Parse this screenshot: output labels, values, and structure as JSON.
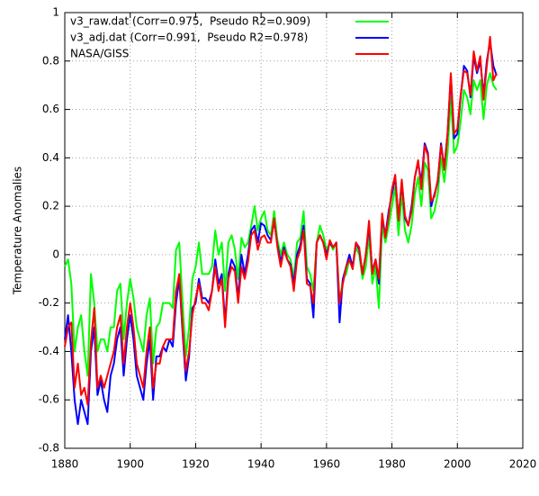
{
  "chart_data": {
    "type": "line",
    "ylabel": "Temperature Anomalies",
    "x": [
      1880,
      1881,
      1882,
      1883,
      1884,
      1885,
      1886,
      1887,
      1888,
      1889,
      1890,
      1891,
      1892,
      1893,
      1894,
      1895,
      1896,
      1897,
      1898,
      1899,
      1900,
      1901,
      1902,
      1903,
      1904,
      1905,
      1906,
      1907,
      1908,
      1909,
      1910,
      1911,
      1912,
      1913,
      1914,
      1915,
      1916,
      1917,
      1918,
      1919,
      1920,
      1921,
      1922,
      1923,
      1924,
      1925,
      1926,
      1927,
      1928,
      1929,
      1930,
      1931,
      1932,
      1933,
      1934,
      1935,
      1936,
      1937,
      1938,
      1939,
      1940,
      1941,
      1942,
      1943,
      1944,
      1945,
      1946,
      1947,
      1948,
      1949,
      1950,
      1951,
      1952,
      1953,
      1954,
      1955,
      1956,
      1957,
      1958,
      1959,
      1960,
      1961,
      1962,
      1963,
      1964,
      1965,
      1966,
      1967,
      1968,
      1969,
      1970,
      1971,
      1972,
      1973,
      1974,
      1975,
      1976,
      1977,
      1978,
      1979,
      1980,
      1981,
      1982,
      1983,
      1984,
      1985,
      1986,
      1987,
      1988,
      1989,
      1990,
      1991,
      1992,
      1993,
      1994,
      1995,
      1996,
      1997,
      1998,
      1999,
      2000,
      2001,
      2002,
      2003,
      2004,
      2005,
      2006,
      2007,
      2008,
      2009,
      2010,
      2011,
      2012
    ],
    "series": [
      {
        "name": "v3_raw.dat (Corr=0.975,  Pseudo R2=0.909)",
        "color": "#00ff00",
        "values": [
          -0.05,
          -0.02,
          -0.12,
          -0.4,
          -0.3,
          -0.25,
          -0.4,
          -0.5,
          -0.08,
          -0.2,
          -0.4,
          -0.35,
          -0.35,
          -0.4,
          -0.3,
          -0.3,
          -0.15,
          -0.12,
          -0.35,
          -0.2,
          -0.1,
          -0.18,
          -0.3,
          -0.35,
          -0.4,
          -0.25,
          -0.18,
          -0.45,
          -0.3,
          -0.28,
          -0.2,
          -0.2,
          -0.2,
          -0.22,
          0.02,
          0.05,
          -0.2,
          -0.42,
          -0.3,
          -0.1,
          -0.05,
          0.05,
          -0.08,
          -0.08,
          -0.08,
          -0.05,
          0.1,
          0.0,
          0.05,
          -0.15,
          0.05,
          0.08,
          0.02,
          -0.1,
          0.07,
          0.03,
          0.05,
          0.12,
          0.2,
          0.1,
          0.15,
          0.18,
          0.1,
          0.08,
          0.18,
          0.06,
          0.0,
          0.05,
          0.0,
          -0.02,
          -0.1,
          0.05,
          0.07,
          0.18,
          -0.05,
          -0.08,
          -0.15,
          0.05,
          0.12,
          0.08,
          0.02,
          0.05,
          0.02,
          0.05,
          -0.2,
          -0.1,
          -0.08,
          -0.02,
          -0.05,
          0.03,
          0.0,
          -0.1,
          -0.05,
          0.08,
          -0.12,
          -0.05,
          -0.22,
          0.12,
          0.05,
          0.12,
          0.2,
          0.28,
          0.08,
          0.25,
          0.1,
          0.05,
          0.12,
          0.25,
          0.32,
          0.2,
          0.38,
          0.35,
          0.15,
          0.18,
          0.25,
          0.4,
          0.3,
          0.42,
          0.65,
          0.42,
          0.45,
          0.55,
          0.68,
          0.65,
          0.58,
          0.72,
          0.68,
          0.72,
          0.56,
          0.7,
          0.75,
          0.7,
          0.68
        ]
      },
      {
        "name": "v3_adj.dat (Corr=0.991,  Pseudo R2=0.978)",
        "color": "#0000ff",
        "values": [
          -0.35,
          -0.25,
          -0.4,
          -0.6,
          -0.7,
          -0.6,
          -0.65,
          -0.7,
          -0.4,
          -0.3,
          -0.58,
          -0.52,
          -0.6,
          -0.65,
          -0.5,
          -0.45,
          -0.35,
          -0.3,
          -0.5,
          -0.35,
          -0.25,
          -0.35,
          -0.5,
          -0.55,
          -0.6,
          -0.45,
          -0.35,
          -0.6,
          -0.42,
          -0.42,
          -0.38,
          -0.4,
          -0.35,
          -0.38,
          -0.2,
          -0.1,
          -0.32,
          -0.52,
          -0.42,
          -0.22,
          -0.2,
          -0.1,
          -0.18,
          -0.18,
          -0.2,
          -0.15,
          -0.02,
          -0.12,
          -0.08,
          -0.28,
          -0.08,
          -0.02,
          -0.05,
          -0.18,
          0.0,
          -0.08,
          0.0,
          0.1,
          0.12,
          0.05,
          0.13,
          0.12,
          0.08,
          0.06,
          0.14,
          0.04,
          -0.03,
          0.03,
          -0.02,
          -0.04,
          -0.12,
          0.0,
          0.04,
          0.12,
          -0.1,
          -0.12,
          -0.26,
          0.05,
          0.08,
          0.05,
          0.0,
          0.05,
          0.03,
          0.05,
          -0.28,
          -0.1,
          -0.05,
          0.0,
          -0.05,
          0.05,
          0.02,
          -0.08,
          0.0,
          0.12,
          -0.07,
          -0.02,
          -0.12,
          0.15,
          0.08,
          0.18,
          0.25,
          0.32,
          0.15,
          0.3,
          0.15,
          0.12,
          0.2,
          0.32,
          0.38,
          0.3,
          0.46,
          0.42,
          0.2,
          0.25,
          0.3,
          0.46,
          0.36,
          0.5,
          0.74,
          0.48,
          0.5,
          0.65,
          0.78,
          0.76,
          0.65,
          0.82,
          0.75,
          0.8,
          0.66,
          0.8,
          0.88,
          0.78,
          0.74
        ]
      },
      {
        "name": "NASA/GISS",
        "color": "#ff0000",
        "values": [
          -0.38,
          -0.3,
          -0.28,
          -0.55,
          -0.45,
          -0.58,
          -0.55,
          -0.62,
          -0.36,
          -0.22,
          -0.55,
          -0.5,
          -0.55,
          -0.5,
          -0.45,
          -0.4,
          -0.3,
          -0.25,
          -0.45,
          -0.3,
          -0.2,
          -0.3,
          -0.45,
          -0.5,
          -0.55,
          -0.4,
          -0.3,
          -0.55,
          -0.45,
          -0.45,
          -0.38,
          -0.35,
          -0.35,
          -0.35,
          -0.15,
          -0.08,
          -0.3,
          -0.48,
          -0.4,
          -0.25,
          -0.18,
          -0.12,
          -0.2,
          -0.2,
          -0.23,
          -0.15,
          -0.05,
          -0.15,
          -0.1,
          -0.3,
          -0.1,
          -0.05,
          -0.07,
          -0.2,
          -0.05,
          -0.1,
          -0.03,
          0.08,
          0.1,
          0.02,
          0.07,
          0.08,
          0.05,
          0.05,
          0.15,
          0.03,
          -0.05,
          0.02,
          -0.02,
          -0.05,
          -0.15,
          -0.02,
          0.02,
          0.1,
          -0.12,
          -0.13,
          -0.2,
          0.05,
          0.08,
          0.05,
          -0.02,
          0.06,
          0.03,
          0.05,
          -0.2,
          -0.12,
          -0.05,
          -0.02,
          -0.06,
          0.05,
          0.03,
          -0.08,
          0.0,
          0.14,
          -0.08,
          -0.02,
          -0.1,
          0.17,
          0.07,
          0.16,
          0.27,
          0.33,
          0.14,
          0.31,
          0.16,
          0.12,
          0.18,
          0.32,
          0.39,
          0.27,
          0.45,
          0.41,
          0.22,
          0.24,
          0.31,
          0.45,
          0.35,
          0.5,
          0.75,
          0.5,
          0.52,
          0.66,
          0.76,
          0.75,
          0.66,
          0.84,
          0.76,
          0.82,
          0.64,
          0.78,
          0.9,
          0.72,
          0.75
        ]
      }
    ],
    "xlim": [
      1880,
      2020
    ],
    "xticks": [
      1880,
      1900,
      1920,
      1940,
      1960,
      1980,
      2000,
      2020
    ],
    "ylim": [
      -0.8,
      1
    ],
    "yticks": [
      -0.8,
      -0.6,
      -0.4,
      -0.2,
      0,
      0.2,
      0.4,
      0.6,
      0.8,
      1
    ],
    "grid": true,
    "legend": "top-left"
  }
}
